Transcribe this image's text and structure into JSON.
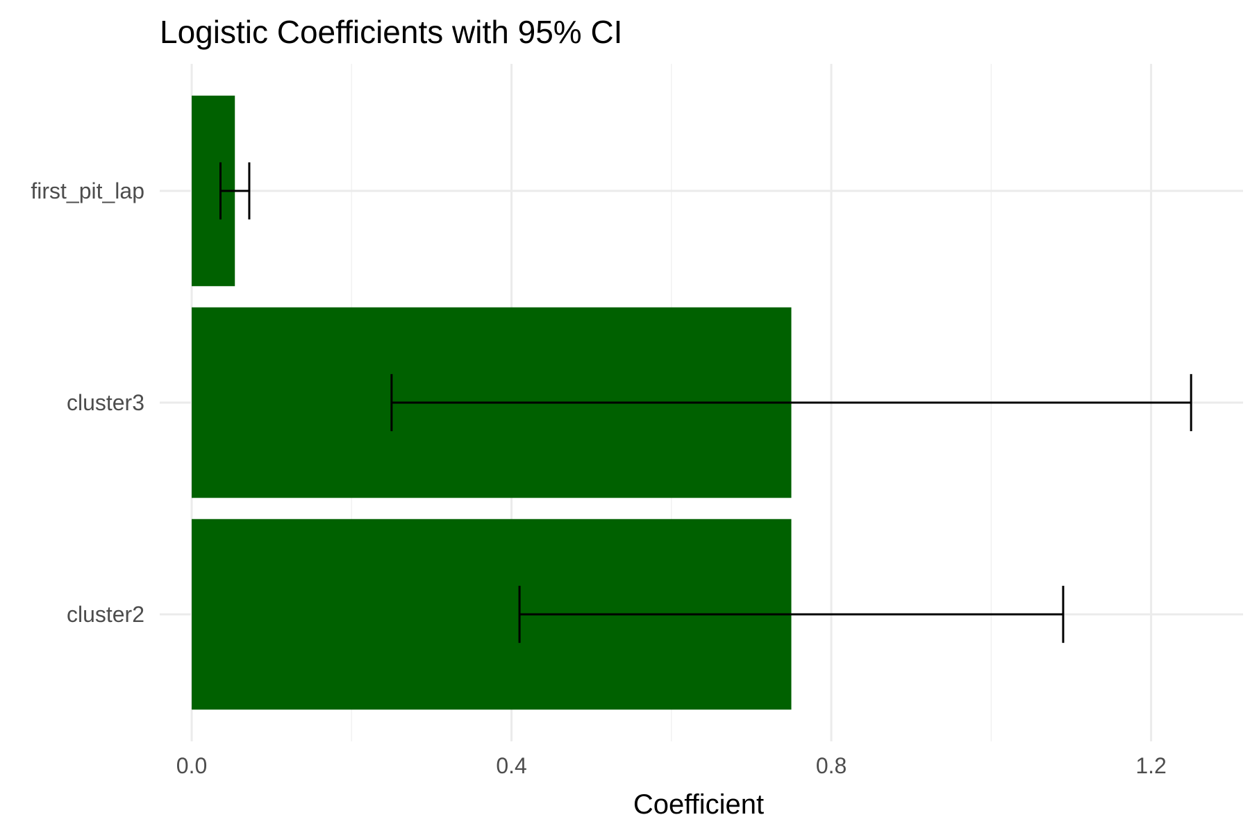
{
  "chart_data": {
    "type": "bar",
    "orientation": "horizontal",
    "title": "Logistic Coefficients with 95% CI",
    "xlabel": "Coefficient",
    "ylabel": "",
    "categories": [
      "cluster2",
      "cluster3",
      "first_pit_lap"
    ],
    "values": [
      0.75,
      0.75,
      0.054
    ],
    "ci_lower": [
      0.41,
      0.25,
      0.036
    ],
    "ci_upper": [
      1.09,
      1.25,
      0.072
    ],
    "xlim": [
      -0.04,
      1.315
    ],
    "x_ticks": [
      0.0,
      0.4,
      0.8,
      1.2
    ],
    "x_tick_labels": [
      "0.0",
      "0.4",
      "0.8",
      "1.2"
    ],
    "bar_color": "#006100",
    "grid": true,
    "legend": "none"
  }
}
